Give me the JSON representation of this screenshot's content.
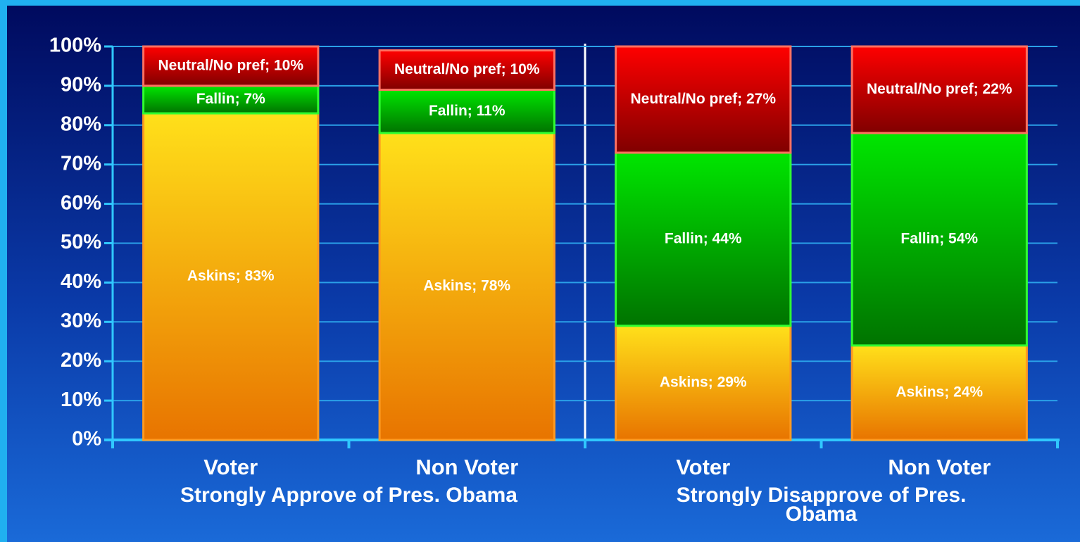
{
  "chart_data": {
    "type": "stacked_bar",
    "categories": [
      "Voter",
      "Non Voter",
      "Voter",
      "Non Voter"
    ],
    "groups": [
      {
        "label": "Strongly Approve of Pres. Obama",
        "categories": [
          0,
          1
        ]
      },
      {
        "label": "Strongly Disapprove of Pres. Obama",
        "categories": [
          2,
          3
        ]
      }
    ],
    "series": [
      {
        "name": "Askins",
        "color": "#ffe01a",
        "values": [
          83,
          78,
          29,
          24
        ],
        "value_labels": [
          "Askins; 83%",
          "Askins; 78%",
          "Askins; 29%",
          "Askins; 24%"
        ]
      },
      {
        "name": "Fallin",
        "color": "#00e600",
        "values": [
          7,
          11,
          44,
          54
        ],
        "value_labels": [
          "Fallin; 7%",
          "Fallin; 11%",
          "Fallin; 44%",
          "Fallin; 54%"
        ]
      },
      {
        "name": "Neutral/No pref",
        "color": "#ff0000",
        "values": [
          10,
          10,
          27,
          22
        ],
        "value_labels": [
          "Neutral/No pref; 10%",
          "Neutral/No pref; 10%",
          "Neutral/No pref; 27%",
          "Neutral/No pref; 22%"
        ]
      }
    ],
    "ylim": [
      0,
      100
    ],
    "yticks": [
      {
        "value": 0,
        "label": "0%"
      },
      {
        "value": 10,
        "label": "10%"
      },
      {
        "value": 20,
        "label": "20%"
      },
      {
        "value": 30,
        "label": "30%"
      },
      {
        "value": 40,
        "label": "40%"
      },
      {
        "value": 50,
        "label": "50%"
      },
      {
        "value": 60,
        "label": "60%"
      },
      {
        "value": 70,
        "label": "70%"
      },
      {
        "value": 80,
        "label": "80%"
      },
      {
        "value": 90,
        "label": "90%"
      },
      {
        "value": 100,
        "label": "100%"
      }
    ],
    "grid": true
  }
}
